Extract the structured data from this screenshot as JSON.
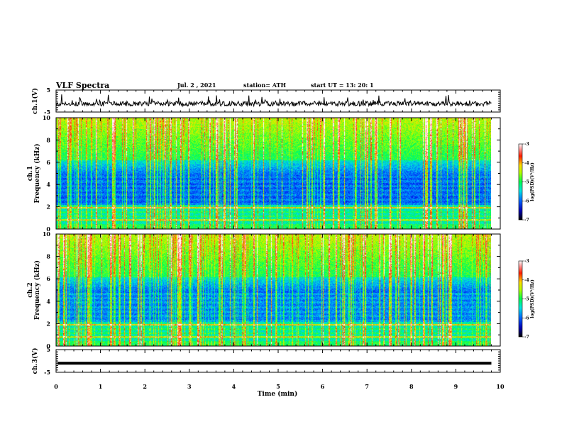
{
  "header": {
    "title": "VLF Spectra",
    "date": "Jul. 2 , 2021",
    "station": "station= ATH",
    "start": "start UT = 13: 20: 1"
  },
  "colors": {
    "spectrogram_scale": [
      "#00005a",
      "#0000ff",
      "#0096ff",
      "#00e6e6",
      "#00ff64",
      "#64ff00",
      "#e6ff00",
      "#ffc800",
      "#ff3200",
      "#ff9696",
      "#ffffff"
    ],
    "trace": "#000000"
  },
  "chart_data": [
    {
      "type": "line",
      "panel": "ch1-waveform",
      "ylabel": "ch.1(V)",
      "ylim": [
        -5,
        5
      ],
      "yticks": [
        "5",
        "-5"
      ],
      "x_range_min": [
        0,
        9.8
      ],
      "description_values": {
        "baseline": -1.2,
        "typical_range": [
          -3.5,
          1.5
        ]
      }
    },
    {
      "type": "heatmap",
      "panel": "ch1-spectrogram",
      "ylabel": "ch.1\nFrequency (kHz)",
      "ylabel_lines": [
        "ch.1",
        "Frequency (kHz)"
      ],
      "ylim": [
        0,
        10
      ],
      "yticks": [
        "10",
        "8",
        "6",
        "4",
        "2",
        "0"
      ],
      "x_range_min": [
        0,
        9.8
      ],
      "colorbar": {
        "label": "log(PSD)(V²/Hz)",
        "label_parts": [
          "log(PSD)(V",
          "2",
          "/Hz)"
        ],
        "ticks": [
          "-3",
          "-4",
          "-5",
          "-6",
          "-7"
        ],
        "range": [
          -7,
          -3
        ]
      }
    },
    {
      "type": "heatmap",
      "panel": "ch2-spectrogram",
      "ylabel": "ch.2\nFrequency (kHz)",
      "ylabel_lines": [
        "ch.2",
        "Frequency (kHz)"
      ],
      "ylim": [
        0,
        10
      ],
      "yticks": [
        "10",
        "8",
        "6",
        "4",
        "2",
        "0"
      ],
      "x_range_min": [
        0,
        9.8
      ],
      "colorbar": {
        "label": "log(PSD)(V²/Hz)",
        "label_parts": [
          "log(PSD)(V",
          "2",
          "/Hz)"
        ],
        "ticks": [
          "-3",
          "-4",
          "-5",
          "-6",
          "-7"
        ],
        "range": [
          -7,
          -3
        ]
      }
    },
    {
      "type": "line",
      "panel": "ch3-waveform",
      "ylabel": "ch.3(V)",
      "ylim": [
        -5,
        5
      ],
      "yticks": [
        "5",
        "-5"
      ],
      "x_range_min": [
        0,
        9.8
      ],
      "description_values": {
        "baseline": -1.0
      }
    }
  ],
  "xaxis": {
    "label": "Time (min)",
    "ticks": [
      "0",
      "1",
      "2",
      "3",
      "4",
      "5",
      "6",
      "7",
      "8",
      "9",
      "10"
    ],
    "range": [
      0,
      10
    ]
  }
}
